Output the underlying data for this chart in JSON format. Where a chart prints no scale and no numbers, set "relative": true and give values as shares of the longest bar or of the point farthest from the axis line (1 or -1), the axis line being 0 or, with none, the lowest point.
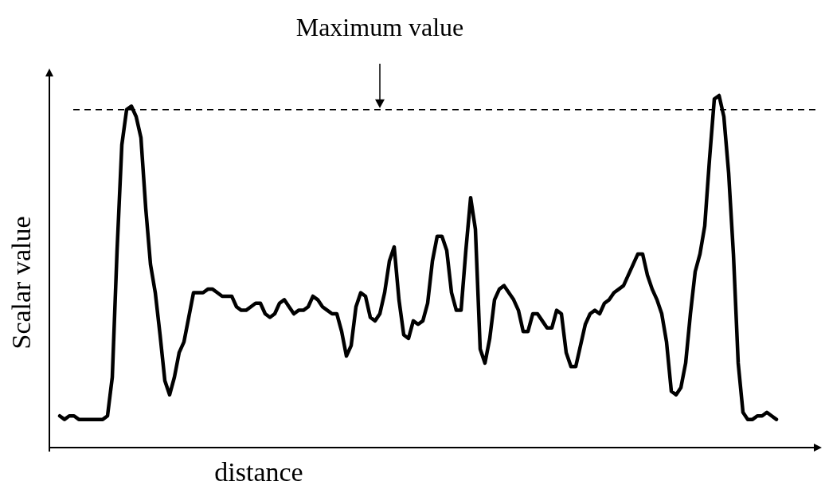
{
  "chart_data": {
    "type": "line",
    "xlabel": "distance",
    "ylabel": "Scalar value",
    "relative": true,
    "categories": [
      null,
      null,
      null,
      null,
      null,
      null,
      null,
      null,
      null,
      null,
      null,
      null,
      null,
      null,
      null,
      null,
      null,
      null,
      null,
      null,
      null,
      null,
      null,
      null,
      null,
      null,
      null,
      null,
      null,
      null,
      null,
      null,
      null,
      null,
      null,
      null,
      null,
      null,
      null,
      null,
      null,
      null,
      null,
      null,
      null,
      null,
      null,
      null,
      null,
      null,
      null,
      null,
      null,
      null,
      null,
      null,
      null,
      null,
      null,
      null,
      null,
      null,
      null,
      null,
      null,
      null,
      null,
      null,
      null,
      null,
      null,
      null,
      null,
      null,
      null,
      null,
      null,
      null,
      null,
      null,
      null,
      null,
      null,
      null,
      null,
      null,
      null,
      null,
      null,
      null,
      null,
      null,
      null,
      null,
      null,
      null,
      null,
      null,
      null,
      null,
      null,
      null,
      null,
      null,
      null,
      null,
      null,
      null,
      null,
      null,
      null,
      null,
      null,
      null,
      null,
      null,
      null,
      null,
      null,
      null,
      null,
      null,
      null,
      null,
      null,
      null,
      null,
      null,
      null,
      null,
      null,
      null,
      null,
      null,
      null,
      null,
      null,
      null,
      null,
      null,
      null,
      null,
      null,
      null,
      null,
      null,
      null,
      null,
      null,
      null,
      null
    ],
    "series": [
      {
        "color": "#000000",
        "values": [
          0.09,
          0.08,
          0.09,
          0.09,
          0.08,
          0.08,
          0.08,
          0.08,
          0.08,
          0.08,
          0.09,
          0.2,
          0.56,
          0.86,
          0.96,
          0.97,
          0.94,
          0.88,
          0.68,
          0.52,
          0.44,
          0.32,
          0.19,
          0.15,
          0.2,
          0.27,
          0.3,
          0.37,
          0.44,
          0.44,
          0.44,
          0.45,
          0.45,
          0.44,
          0.43,
          0.43,
          0.43,
          0.4,
          0.39,
          0.39,
          0.4,
          0.41,
          0.41,
          0.38,
          0.37,
          0.38,
          0.41,
          0.42,
          0.4,
          0.38,
          0.39,
          0.39,
          0.4,
          0.43,
          0.42,
          0.4,
          0.39,
          0.38,
          0.38,
          0.33,
          0.26,
          0.29,
          0.4,
          0.44,
          0.43,
          0.37,
          0.36,
          0.38,
          0.44,
          0.53,
          0.57,
          0.42,
          0.32,
          0.31,
          0.36,
          0.35,
          0.36,
          0.41,
          0.53,
          0.6,
          0.6,
          0.56,
          0.44,
          0.39,
          0.39,
          0.56,
          0.71,
          0.62,
          0.28,
          0.24,
          0.31,
          0.42,
          0.45,
          0.46,
          0.44,
          0.42,
          0.39,
          0.33,
          0.33,
          0.38,
          0.38,
          0.36,
          0.34,
          0.34,
          0.39,
          0.38,
          0.27,
          0.23,
          0.23,
          0.29,
          0.35,
          0.38,
          0.39,
          0.38,
          0.41,
          0.42,
          0.44,
          0.45,
          0.46,
          0.49,
          0.52,
          0.55,
          0.55,
          0.49,
          0.45,
          0.42,
          0.38,
          0.3,
          0.16,
          0.15,
          0.17,
          0.24,
          0.38,
          0.5,
          0.55,
          0.63,
          0.82,
          0.99,
          1,
          0.94,
          0.78,
          0.55,
          0.24,
          0.1,
          0.08,
          0.08,
          0.09,
          0.09,
          0.1,
          0.09,
          0.08
        ]
      }
    ],
    "ref_lines": [
      {
        "axis": "y",
        "value": 0.96,
        "label": "Maximum value",
        "line_style": "dashed",
        "color": "#000000"
      }
    ]
  }
}
